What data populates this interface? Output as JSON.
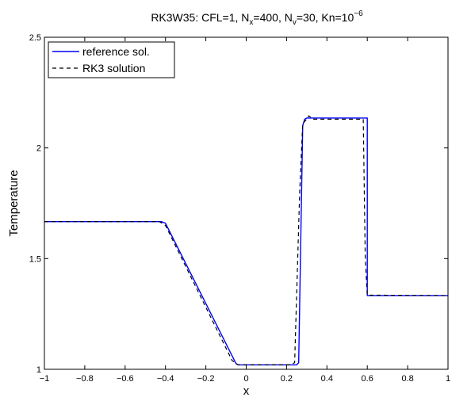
{
  "chart_data": {
    "type": "line",
    "title": {
      "prefix": "RK3W35: CFL=1, N",
      "sub_x": "x",
      "mid1": "=400, N",
      "sub_v": "v",
      "mid2": "=30, Kn=10",
      "exponent": "−6"
    },
    "xlabel": "x",
    "ylabel": "Temperature",
    "xlim": [
      -1,
      1
    ],
    "ylim": [
      1,
      2.5
    ],
    "xticks": [
      -1,
      -0.8,
      -0.6,
      -0.4,
      -0.2,
      0,
      0.2,
      0.4,
      0.6,
      0.8,
      1
    ],
    "xtick_labels": [
      "−1",
      "−0.8",
      "−0.6",
      "−0.4",
      "−0.2",
      "0",
      "0.2",
      "0.4",
      "0.6",
      "0.8",
      "1"
    ],
    "yticks": [
      1,
      1.5,
      2,
      2.5
    ],
    "ytick_labels": [
      "1",
      "1.5",
      "2",
      "2.5"
    ],
    "grid": false,
    "legend_position": "top-left",
    "series": [
      {
        "name": "reference sol.",
        "color": "#0000ff",
        "style": "solid",
        "x": [
          -1,
          -0.42,
          -0.4,
          -0.05,
          -0.04,
          0.25,
          0.26,
          0.28,
          0.29,
          0.3,
          0.6,
          0.6,
          1.0
        ],
        "y": [
          1.667,
          1.667,
          1.66,
          1.025,
          1.02,
          1.02,
          1.03,
          2.1,
          2.13,
          2.135,
          2.135,
          1.333,
          1.333
        ]
      },
      {
        "name": "RK3 solution",
        "color": "#000000",
        "style": "dashed",
        "x": [
          -1,
          -0.43,
          -0.4,
          -0.07,
          -0.04,
          0.22,
          0.24,
          0.265,
          0.28,
          0.3,
          0.31,
          0.33,
          0.58,
          0.59,
          0.6,
          1.0
        ],
        "y": [
          1.667,
          1.667,
          1.65,
          1.04,
          1.02,
          1.02,
          1.03,
          1.8,
          2.11,
          2.13,
          2.145,
          2.13,
          2.13,
          1.5,
          1.335,
          1.333
        ]
      }
    ]
  }
}
